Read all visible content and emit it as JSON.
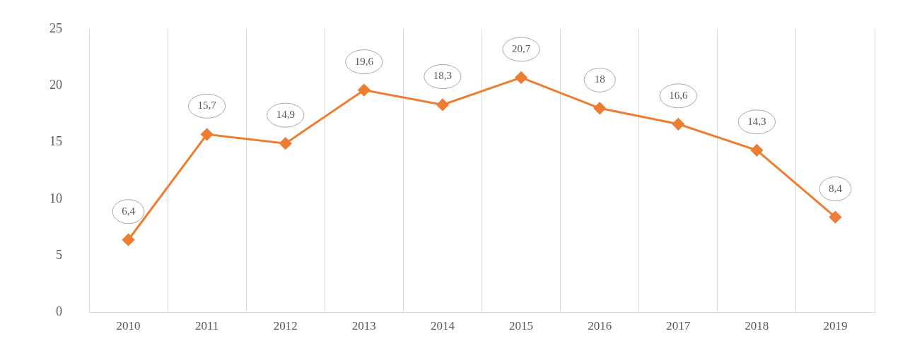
{
  "chart_data": {
    "type": "line",
    "categories": [
      "2010",
      "2011",
      "2012",
      "2013",
      "2014",
      "2015",
      "2016",
      "2017",
      "2018",
      "2019"
    ],
    "values": [
      6.4,
      15.7,
      14.9,
      19.6,
      18.3,
      20.7,
      18,
      16.6,
      14.3,
      8.4
    ],
    "value_labels": [
      "6,4",
      "15,7",
      "14,9",
      "19,6",
      "18,3",
      "20,7",
      "18",
      "16,6",
      "14,3",
      "8,4"
    ],
    "color": "#ed7d31",
    "marker": "diamond",
    "ylim": [
      0,
      25
    ],
    "yticks": [
      0,
      5,
      10,
      15,
      20,
      25
    ],
    "grid": true,
    "data_labels": true
  }
}
